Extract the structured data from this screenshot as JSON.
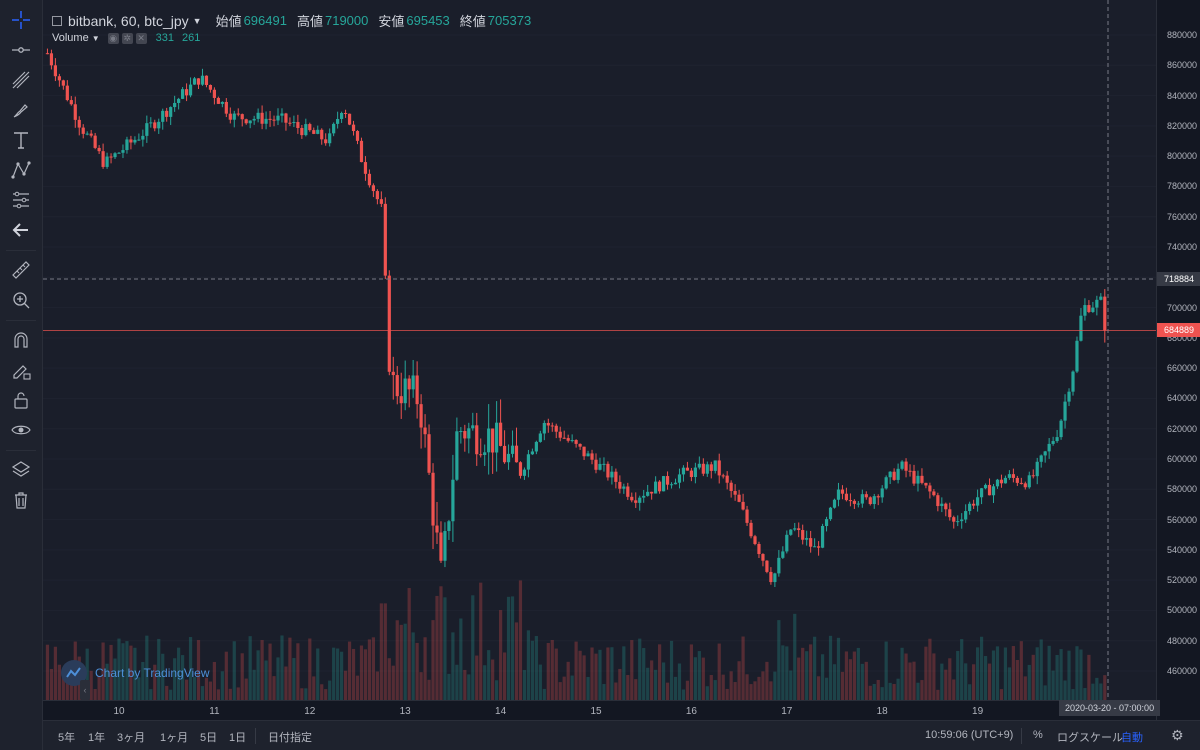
{
  "legend": {
    "symbol": "bitbank, 60, btc_jpy",
    "open_label": "始値",
    "open_value": "696491",
    "high_label": "高値",
    "high_value": "719000",
    "low_label": "安値",
    "low_value": "695453",
    "close_label": "終値",
    "close_value": "705373"
  },
  "volume_legend": {
    "label": "Volume",
    "value1": "331",
    "value2": "261"
  },
  "watermark": "Chart by TradingView",
  "price_axis": {
    "ticks": [
      "880000",
      "860000",
      "840000",
      "820000",
      "800000",
      "780000",
      "760000",
      "740000",
      "720000",
      "700000",
      "680000",
      "660000",
      "640000",
      "620000",
      "600000",
      "580000",
      "560000",
      "540000",
      "520000",
      "500000",
      "480000",
      "460000"
    ],
    "crosshair_label": "718884",
    "last_price_label": "684889"
  },
  "time_axis": {
    "ticks": [
      "10",
      "11",
      "12",
      "13",
      "14",
      "15",
      "16",
      "17",
      "18",
      "19"
    ],
    "crosshair_label": "2020-03-20 - 07:00:00"
  },
  "bottom_bar": {
    "ranges": [
      "5年",
      "1年",
      "3ヶ月",
      "1ヶ月",
      "5日",
      "1日"
    ],
    "date_select": "日付指定",
    "clock": "10:59:06 (UTC+9)",
    "percent": "%",
    "log_scale": "ログスケール",
    "auto": "自動"
  },
  "colors": {
    "up": "#26a69a",
    "down": "#ef5350",
    "background": "#1a1e2a",
    "accent": "#2962ff"
  },
  "chart_data": {
    "type": "candlestick",
    "symbol": "bitbank, 60, btc_jpy",
    "ylim": [
      450000,
      890000
    ],
    "x_ticks": [
      "10",
      "11",
      "12",
      "13",
      "14",
      "15",
      "16",
      "17",
      "18",
      "19"
    ],
    "anchors": [
      {
        "day": 9.25,
        "price": 868000
      },
      {
        "day": 9.6,
        "price": 820000
      },
      {
        "day": 9.85,
        "price": 795000
      },
      {
        "day": 10.3,
        "price": 818000
      },
      {
        "day": 10.85,
        "price": 852000
      },
      {
        "day": 11.2,
        "price": 826000
      },
      {
        "day": 11.7,
        "price": 824000
      },
      {
        "day": 12.2,
        "price": 810000
      },
      {
        "day": 12.35,
        "price": 835000
      },
      {
        "day": 12.55,
        "price": 797000
      },
      {
        "day": 12.75,
        "price": 765000
      },
      {
        "day": 12.85,
        "price": 650000
      },
      {
        "day": 13.15,
        "price": 640000
      },
      {
        "day": 13.38,
        "price": 520000
      },
      {
        "day": 13.55,
        "price": 620000
      },
      {
        "day": 13.9,
        "price": 615000
      },
      {
        "day": 14.2,
        "price": 590000
      },
      {
        "day": 14.45,
        "price": 625000
      },
      {
        "day": 14.95,
        "price": 600000
      },
      {
        "day": 15.4,
        "price": 575000
      },
      {
        "day": 15.9,
        "price": 590000
      },
      {
        "day": 16.25,
        "price": 595000
      },
      {
        "day": 16.5,
        "price": 570000
      },
      {
        "day": 16.85,
        "price": 520000
      },
      {
        "day": 17.05,
        "price": 555000
      },
      {
        "day": 17.3,
        "price": 540000
      },
      {
        "day": 17.55,
        "price": 578000
      },
      {
        "day": 17.85,
        "price": 572000
      },
      {
        "day": 18.2,
        "price": 595000
      },
      {
        "day": 18.55,
        "price": 575000
      },
      {
        "day": 18.75,
        "price": 558000
      },
      {
        "day": 19.0,
        "price": 575000
      },
      {
        "day": 19.3,
        "price": 588000
      },
      {
        "day": 19.55,
        "price": 585000
      },
      {
        "day": 19.85,
        "price": 620000
      },
      {
        "day": 20.0,
        "price": 660000
      },
      {
        "day": 20.1,
        "price": 700000
      },
      {
        "day": 20.35,
        "price": 705000
      }
    ],
    "last_price": 684889,
    "crosshair_price": 718884,
    "crosshair_time": "2020-03-20 - 07:00:00"
  }
}
